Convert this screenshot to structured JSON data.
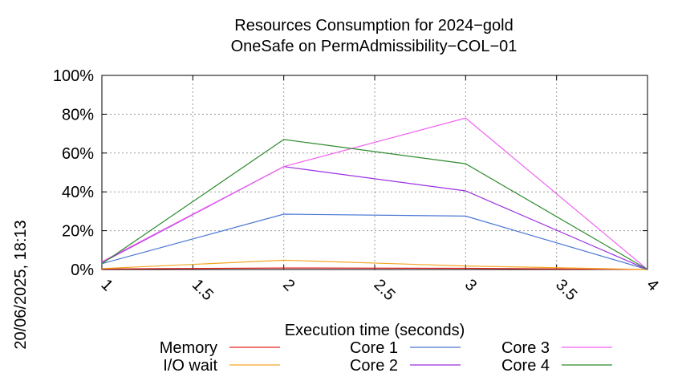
{
  "chart_data": {
    "type": "line",
    "title_line1": "Resources Consumption for 2024−gold",
    "title_line2": "OneSafe on PermAdmissibility−COL−01",
    "xlabel": "Execution time (seconds)",
    "side_label": "20/06/2025, 18:13",
    "xlim": [
      1,
      4
    ],
    "ylim": [
      0,
      100
    ],
    "x_ticks": [
      "1",
      "1.5",
      "2",
      "2.5",
      "3",
      "3.5",
      "4"
    ],
    "x_tick_values": [
      1,
      1.5,
      2,
      2.5,
      3,
      3.5,
      4
    ],
    "y_ticks": [
      "0%",
      "20%",
      "40%",
      "60%",
      "80%",
      "100%"
    ],
    "y_tick_values": [
      0,
      20,
      40,
      60,
      80,
      100
    ],
    "grid": true,
    "legend_position": "bottom",
    "x": [
      1,
      2,
      3,
      4
    ],
    "series": [
      {
        "name": "Memory",
        "color": "#e8221f",
        "values": [
          0.3,
          0.8,
          0.6,
          0
        ]
      },
      {
        "name": "I/O wait",
        "color": "#f5a623",
        "values": [
          0.5,
          4.8,
          1.8,
          0
        ]
      },
      {
        "name": "Core 1",
        "color": "#4a77d4",
        "values": [
          3,
          28.5,
          27.5,
          0
        ]
      },
      {
        "name": "Core 2",
        "color": "#9b30e0",
        "values": [
          3.5,
          53,
          40.5,
          0
        ]
      },
      {
        "name": "Core 3",
        "color": "#f060f0",
        "values": [
          4,
          53,
          78,
          0
        ]
      },
      {
        "name": "Core 4",
        "color": "#2e8b2e",
        "values": [
          3,
          67,
          54.5,
          0
        ]
      }
    ]
  }
}
